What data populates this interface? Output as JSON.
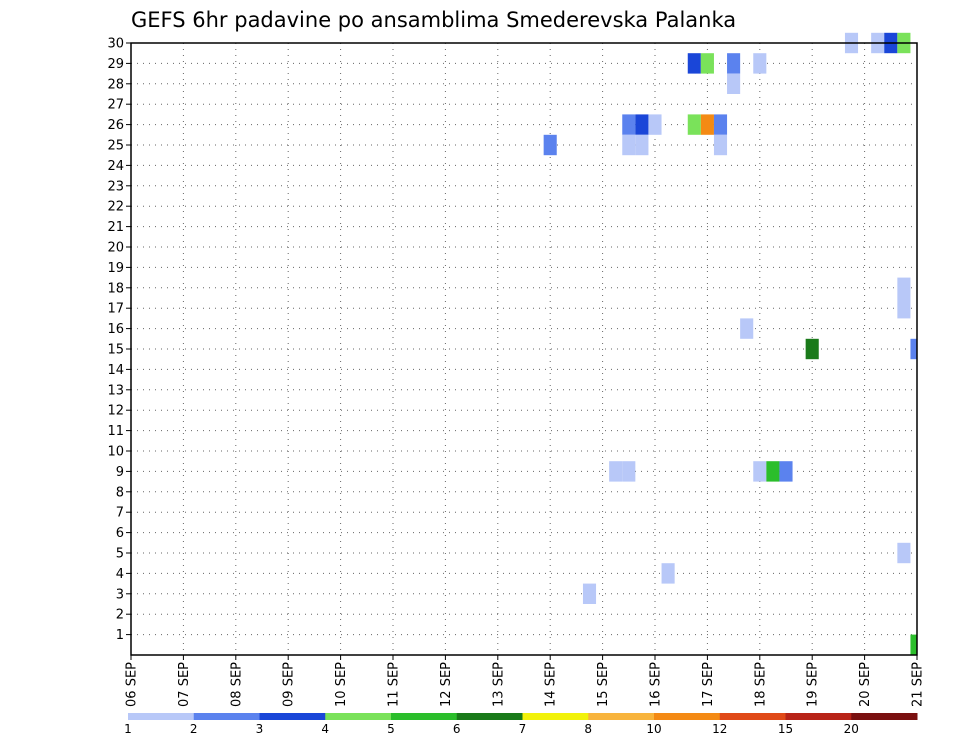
{
  "chart_data": {
    "type": "heatmap",
    "title": "GEFS 6hr padavine po ansamblima Smederevska Palanka",
    "xlabel": "",
    "ylabel": "",
    "x_ticks": [
      "06 SEP",
      "07 SEP",
      "08 SEP",
      "09 SEP",
      "10 SEP",
      "11 SEP",
      "12 SEP",
      "13 SEP",
      "14 SEP",
      "15 SEP",
      "16 SEP",
      "17 SEP",
      "18 SEP",
      "19 SEP",
      "20 SEP",
      "21 SEP"
    ],
    "y_ticks": [
      1,
      2,
      3,
      4,
      5,
      6,
      7,
      8,
      9,
      10,
      11,
      12,
      13,
      14,
      15,
      16,
      17,
      18,
      19,
      20,
      21,
      22,
      23,
      24,
      25,
      26,
      27,
      28,
      29,
      30
    ],
    "x_range_days": [
      0,
      15
    ],
    "y_range": [
      0,
      30
    ],
    "grid": true,
    "legend": {
      "placement": "bottom",
      "labels": [
        "1",
        "2",
        "3",
        "4",
        "5",
        "6",
        "7",
        "8",
        "10",
        "12",
        "15",
        "20"
      ],
      "colors": [
        "#b8c8f8",
        "#5b82ee",
        "#1a46d8",
        "#7ae25a",
        "#2bbe2b",
        "#1a7a1a",
        "#f2f20a",
        "#f8b43c",
        "#f48a14",
        "#e04a18",
        "#b82418",
        "#7a1010"
      ]
    },
    "cells": [
      {
        "member": 30,
        "day": 13.75,
        "cat": 1
      },
      {
        "member": 30,
        "day": 14.25,
        "cat": 1
      },
      {
        "member": 30,
        "day": 14.5,
        "cat": 3
      },
      {
        "member": 30,
        "day": 14.75,
        "cat": 4
      },
      {
        "member": 29,
        "day": 10.75,
        "cat": 3
      },
      {
        "member": 29,
        "day": 11.0,
        "cat": 4
      },
      {
        "member": 29,
        "day": 11.5,
        "cat": 2
      },
      {
        "member": 29,
        "day": 12.0,
        "cat": 1
      },
      {
        "member": 28,
        "day": 11.5,
        "cat": 1
      },
      {
        "member": 26,
        "day": 9.5,
        "cat": 2
      },
      {
        "member": 26,
        "day": 9.75,
        "cat": 3
      },
      {
        "member": 26,
        "day": 10.0,
        "cat": 1
      },
      {
        "member": 26,
        "day": 10.75,
        "cat": 4
      },
      {
        "member": 26,
        "day": 11.0,
        "cat": 9
      },
      {
        "member": 26,
        "day": 11.25,
        "cat": 2
      },
      {
        "member": 25,
        "day": 8.0,
        "cat": 2
      },
      {
        "member": 25,
        "day": 9.5,
        "cat": 1
      },
      {
        "member": 25,
        "day": 9.75,
        "cat": 1
      },
      {
        "member": 25,
        "day": 11.25,
        "cat": 1
      },
      {
        "member": 18,
        "day": 14.75,
        "cat": 1
      },
      {
        "member": 17,
        "day": 14.75,
        "cat": 1
      },
      {
        "member": 16,
        "day": 11.75,
        "cat": 1
      },
      {
        "member": 15,
        "day": 13.0,
        "cat": 6
      },
      {
        "member": 15,
        "day": 15.0,
        "cat": 2
      },
      {
        "member": 9,
        "day": 9.25,
        "cat": 1
      },
      {
        "member": 9,
        "day": 9.5,
        "cat": 1
      },
      {
        "member": 9,
        "day": 12.0,
        "cat": 1
      },
      {
        "member": 9,
        "day": 12.25,
        "cat": 5
      },
      {
        "member": 9,
        "day": 12.5,
        "cat": 2
      },
      {
        "member": 5,
        "day": 14.75,
        "cat": 1
      },
      {
        "member": 4,
        "day": 10.25,
        "cat": 1
      },
      {
        "member": 3,
        "day": 8.75,
        "cat": 1
      },
      {
        "member": 0.5,
        "day": 15.0,
        "cat": 5
      }
    ]
  }
}
